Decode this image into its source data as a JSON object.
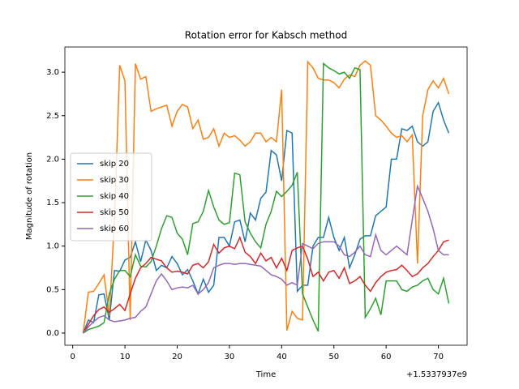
{
  "chart_data": {
    "type": "line",
    "title": "Rotation error for Kabsch method",
    "x_label": "Time",
    "y_label": "Magnitude of rotation",
    "x_offset_label": "+1.5337937e9",
    "x": [
      2,
      3,
      4,
      5,
      6,
      7,
      8,
      9,
      10,
      11,
      12,
      13,
      14,
      15,
      16,
      17,
      18,
      19,
      20,
      21,
      22,
      23,
      24,
      25,
      26,
      27,
      28,
      29,
      30,
      31,
      32,
      33,
      34,
      35,
      36,
      37,
      38,
      39,
      40,
      41,
      42,
      43,
      44,
      45,
      46,
      47,
      48,
      49,
      50,
      51,
      52,
      53,
      54,
      55,
      56,
      57,
      58,
      59,
      60,
      61,
      62,
      63,
      64,
      65,
      66,
      67,
      68,
      69,
      70,
      71,
      72
    ],
    "series": [
      {
        "name": "skip 20",
        "color": "#1f77b4",
        "values": [
          0,
          0.15,
          0.12,
          0.44,
          0.45,
          0.15,
          0.72,
          0.71,
          0.84,
          0.87,
          1.05,
          0.82,
          1.07,
          0.95,
          0.72,
          0.78,
          0.75,
          0.88,
          0.8,
          0.67,
          0.73,
          0.6,
          0.45,
          0.62,
          0.47,
          0.55,
          1.1,
          1.1,
          1.0,
          1.28,
          1.3,
          1.05,
          1.38,
          1.3,
          1.55,
          1.62,
          2.1,
          2.05,
          1.75,
          2.33,
          2.3,
          0.48,
          0.55,
          0.55,
          1.0,
          1.1,
          1.1,
          1.33,
          1.1,
          0.95,
          1.1,
          0.75,
          0.9,
          1.08,
          1.12,
          1.12,
          1.35,
          1.4,
          1.45,
          2.0,
          2.0,
          2.35,
          2.33,
          2.38,
          2.2,
          2.15,
          2.2,
          2.55,
          2.65,
          2.45,
          2.3
        ]
      },
      {
        "name": "skip 30",
        "color": "#ff7f0e",
        "values": [
          0,
          0.47,
          0.48,
          0.57,
          0.67,
          0.2,
          1.3,
          3.08,
          2.9,
          0.15,
          3.1,
          2.92,
          2.95,
          2.55,
          2.58,
          2.6,
          2.62,
          2.38,
          2.55,
          2.63,
          2.6,
          2.35,
          2.45,
          2.23,
          2.25,
          2.35,
          2.15,
          2.3,
          2.25,
          2.27,
          2.22,
          2.15,
          2.2,
          2.3,
          2.3,
          2.2,
          2.25,
          2.2,
          2.8,
          0.03,
          0.25,
          0.17,
          0.15,
          3.12,
          3.05,
          2.93,
          2.91,
          2.91,
          2.88,
          2.82,
          2.92,
          2.97,
          2.95,
          3.08,
          3.13,
          3.08,
          2.5,
          2.45,
          2.38,
          2.3,
          2.25,
          2.27,
          2.2,
          2.28,
          0.8,
          2.5,
          2.8,
          2.9,
          2.82,
          2.93,
          2.75
        ]
      },
      {
        "name": "skip 40",
        "color": "#2ca02c",
        "values": [
          0,
          0.04,
          0.06,
          0.08,
          0.12,
          0.45,
          0.62,
          0.72,
          0.72,
          0.65,
          0.9,
          0.77,
          0.76,
          0.82,
          1.0,
          1.2,
          1.35,
          1.33,
          1.15,
          1.08,
          0.9,
          1.26,
          1.28,
          1.4,
          1.64,
          1.45,
          1.3,
          1.25,
          1.27,
          1.84,
          1.82,
          1.28,
          1.15,
          1.05,
          0.98,
          1.25,
          1.4,
          1.63,
          1.57,
          1.63,
          1.7,
          1.85,
          0.45,
          0.3,
          0.15,
          0.02,
          3.1,
          3.05,
          3.02,
          2.98,
          3.0,
          2.93,
          3.05,
          3.03,
          0.18,
          0.28,
          0.4,
          0.21,
          0.6,
          0.6,
          0.6,
          0.5,
          0.48,
          0.53,
          0.55,
          0.6,
          0.63,
          0.5,
          0.45,
          0.63,
          0.34
        ]
      },
      {
        "name": "skip 50",
        "color": "#d62728",
        "values": [
          0,
          0.1,
          0.2,
          0.27,
          0.3,
          0.24,
          0.28,
          0.33,
          0.26,
          0.45,
          0.63,
          0.75,
          0.8,
          0.87,
          0.85,
          0.83,
          0.75,
          0.7,
          0.71,
          0.7,
          0.68,
          0.78,
          0.8,
          0.75,
          0.82,
          1.02,
          0.92,
          0.98,
          1.0,
          0.97,
          1.1,
          0.93,
          0.88,
          0.8,
          0.92,
          0.83,
          0.87,
          0.75,
          0.86,
          0.72,
          0.95,
          0.98,
          1.0,
          0.85,
          0.65,
          0.7,
          0.6,
          0.7,
          0.72,
          0.63,
          0.75,
          0.57,
          0.6,
          0.65,
          0.55,
          0.48,
          0.58,
          0.65,
          0.7,
          0.72,
          0.73,
          0.78,
          0.72,
          0.65,
          0.68,
          0.75,
          0.8,
          0.88,
          0.95,
          1.05,
          1.07
        ]
      },
      {
        "name": "skip 60",
        "color": "#9467bd",
        "values": [
          0,
          0.07,
          0.13,
          0.18,
          0.2,
          0.15,
          0.13,
          0.14,
          0.15,
          0.17,
          0.18,
          0.25,
          0.3,
          0.45,
          0.6,
          0.68,
          0.6,
          0.5,
          0.52,
          0.53,
          0.52,
          0.55,
          0.45,
          0.5,
          0.58,
          0.75,
          0.78,
          0.8,
          0.8,
          0.79,
          0.8,
          0.8,
          0.79,
          0.78,
          0.77,
          0.72,
          0.67,
          0.65,
          0.62,
          0.55,
          0.58,
          0.55,
          1.03,
          1.0,
          0.97,
          1.03,
          1.05,
          1.05,
          1.05,
          1.0,
          0.9,
          0.88,
          0.93,
          1.0,
          0.9,
          0.88,
          1.13,
          0.95,
          0.9,
          0.95,
          1.0,
          0.95,
          0.9,
          1.3,
          1.69,
          1.55,
          1.4,
          1.2,
          0.95,
          0.9,
          0.9
        ]
      }
    ],
    "xlim": [
      -1.5,
      75.5
    ],
    "xticks": [
      0,
      10,
      20,
      30,
      40,
      50,
      60,
      70
    ],
    "ylim": [
      -0.14,
      3.29
    ],
    "yticks": [
      {
        "value": 0,
        "label": "0.0"
      },
      {
        "value": 0.5,
        "label": "0.5"
      },
      {
        "value": 1,
        "label": "1.0"
      },
      {
        "value": 1.5,
        "label": "1.5"
      },
      {
        "value": 2,
        "label": "2.0"
      },
      {
        "value": 2.5,
        "label": "2.5"
      },
      {
        "value": 3,
        "label": "3.0"
      }
    ],
    "legend": "center left",
    "grid": false
  }
}
